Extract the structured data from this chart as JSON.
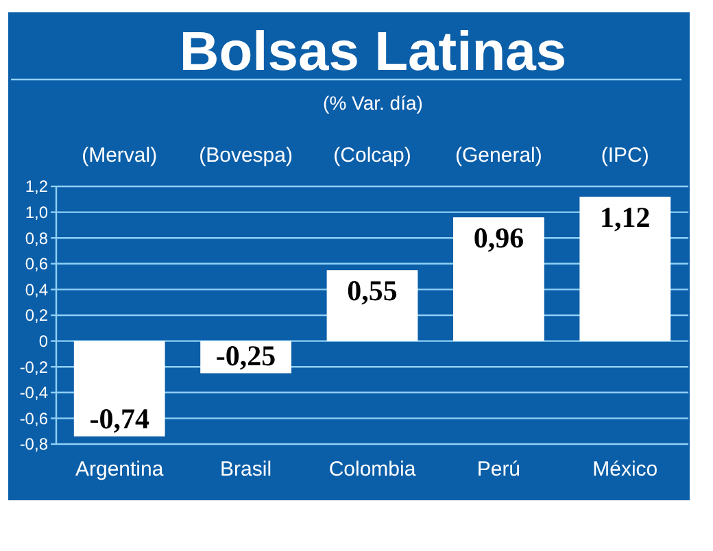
{
  "chart_data": {
    "type": "bar",
    "title": "Bolsas Latinas",
    "subtitle": "(% Var. día)",
    "categories": [
      "Argentina",
      "Brasil",
      "Colombia",
      "Perú",
      "México"
    ],
    "values": [
      -0.74,
      -0.25,
      0.55,
      0.96,
      1.12
    ],
    "color": "#ffffff",
    "value_labels": [
      "-0,74",
      "-0,25",
      "0,55",
      "0,96",
      "1,12"
    ],
    "ylim": [
      -0.8,
      1.2
    ],
    "yticks": [
      {
        "value": -0.8,
        "label": "-0,8"
      },
      {
        "value": -0.6,
        "label": "-0,6"
      },
      {
        "value": -0.4,
        "label": "-0,4"
      },
      {
        "value": -0.2,
        "label": "-0,2"
      },
      0,
      {
        "value": 0.2,
        "label": "0,2"
      },
      {
        "value": 0.4,
        "label": "0,4"
      },
      {
        "value": 0.6,
        "label": "0,6"
      },
      {
        "value": 0.8,
        "label": "0,8"
      },
      {
        "value": 1.0,
        "label": "1,0"
      },
      {
        "value": 1.2,
        "label": "1,2"
      }
    ],
    "grid": "y",
    "annotations": [
      "(Merval)",
      "(Bovespa)",
      "(Colcap)",
      "(General)",
      "(IPC)"
    ]
  }
}
